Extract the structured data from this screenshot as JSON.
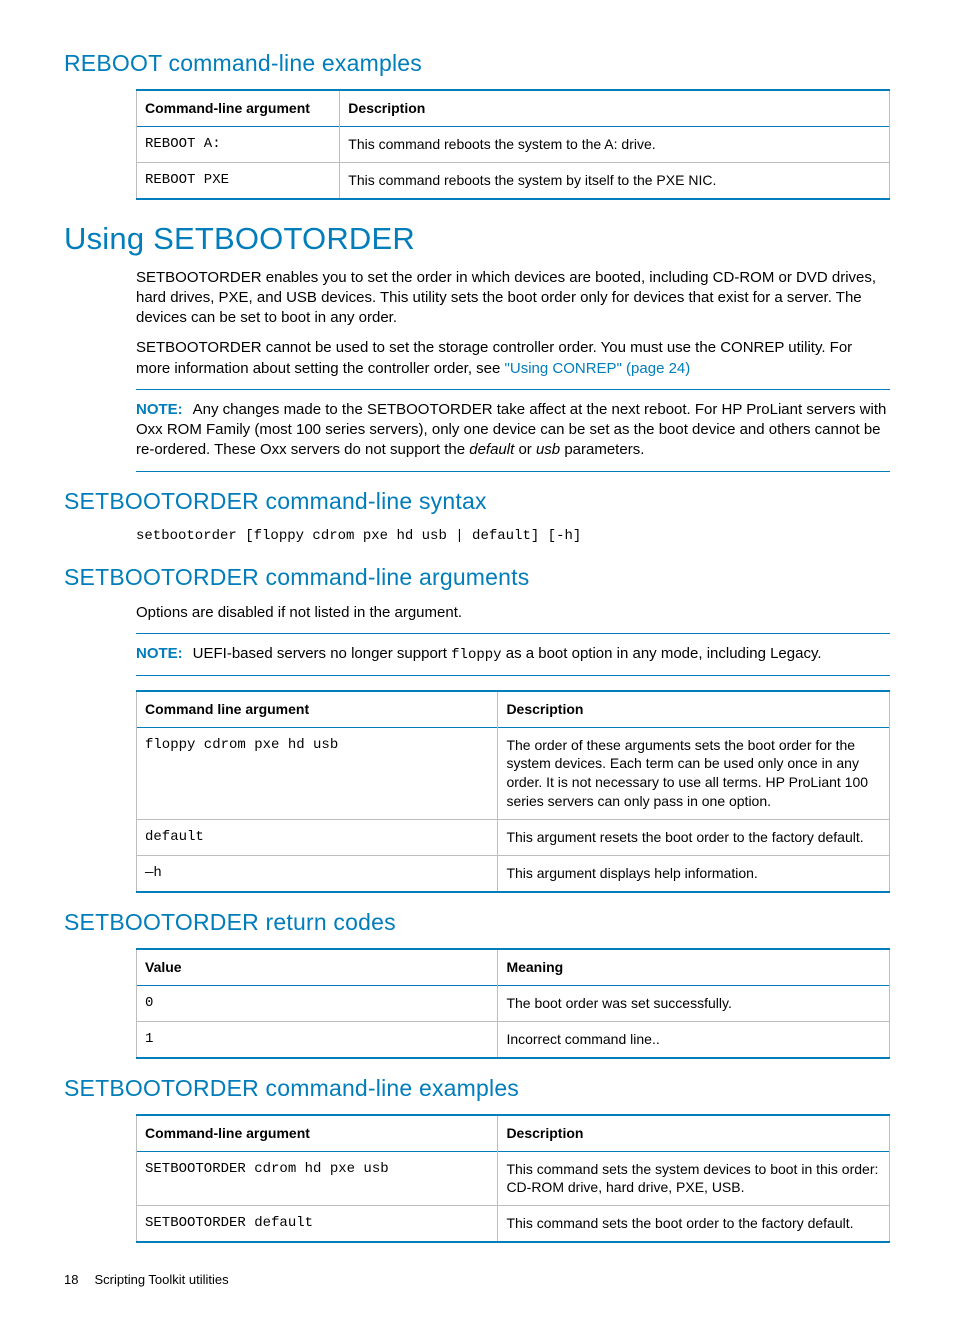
{
  "colors": {
    "accent": "#007dba",
    "rule": "#bdbdbd",
    "text": "#000000",
    "background": "#ffffff"
  },
  "sections": {
    "reboot_examples_heading": "REBOOT command-line examples",
    "setbootorder_heading": "Using SETBOOTORDER",
    "setbootorder_para1": "SETBOOTORDER enables you to set the order in which devices are booted, including CD-ROM or DVD drives, hard drives, PXE, and USB devices. This utility sets the boot order only for devices that exist for a server. The devices can be set to boot in any order.",
    "setbootorder_para2_prefix": "SETBOOTORDER cannot be used to set the storage controller order. You must use the CONREP utility. For more information about setting the controller order, see ",
    "setbootorder_link": "\"Using CONREP\" (page 24)",
    "note1_label": "NOTE:",
    "note1_text_a": "Any changes made to the SETBOOTORDER take affect at the next reboot. For HP ProLiant servers with Oxx ROM Family (most 100 series servers), only one device can be set as the boot device and others cannot be re-ordered. These Oxx servers do not support the ",
    "note1_italic1": "default",
    "note1_text_b": " or ",
    "note1_italic2": "usb",
    "note1_text_c": " parameters.",
    "syntax_heading": "SETBOOTORDER command-line syntax",
    "syntax_code": "setbootorder [floppy cdrom pxe hd usb | default] [-h]",
    "args_heading": "SETBOOTORDER command-line arguments",
    "args_intro": "Options are disabled if not listed in the argument.",
    "note2_label": "NOTE:",
    "note2_text_a": "UEFI-based servers no longer support ",
    "note2_code": "floppy",
    "note2_text_b": " as a boot option in any mode, including Legacy.",
    "return_heading": "SETBOOTORDER return codes",
    "examples_heading": "SETBOOTORDER command-line examples"
  },
  "tables": {
    "reboot_examples": {
      "columns": [
        "Command-line argument",
        "Description"
      ],
      "col_widths": [
        "27%",
        "73%"
      ],
      "rows": [
        [
          "REBOOT A:",
          "This command reboots the system to the A: drive."
        ],
        [
          "REBOOT PXE",
          "This command reboots the system by itself to the PXE NIC."
        ]
      ]
    },
    "args": {
      "columns": [
        "Command line argument",
        "Description"
      ],
      "col_widths": [
        "48%",
        "52%"
      ],
      "rows": [
        [
          "floppy cdrom pxe hd usb",
          "The order of these arguments sets the boot order for the system devices. Each term can be used only once in any order. It is not necessary to use all terms. HP ProLiant 100 series servers can only pass in one option."
        ],
        [
          "default",
          "This argument resets the boot order to the factory default."
        ],
        [
          "—h",
          "This argument displays help information."
        ]
      ]
    },
    "return_codes": {
      "columns": [
        "Value",
        "Meaning"
      ],
      "col_widths": [
        "48%",
        "52%"
      ],
      "rows": [
        [
          "0",
          "The boot order was set successfully."
        ],
        [
          "1",
          "Incorrect command line.."
        ]
      ]
    },
    "examples": {
      "columns": [
        "Command-line argument",
        "Description"
      ],
      "col_widths": [
        "48%",
        "52%"
      ],
      "rows": [
        [
          "SETBOOTORDER cdrom hd pxe usb",
          "This command sets the system devices to boot in this order: CD-ROM drive, hard drive, PXE, USB."
        ],
        [
          "SETBOOTORDER default",
          "This command sets the boot order to the factory default."
        ]
      ]
    }
  },
  "footer": {
    "page": "18",
    "title": "Scripting Toolkit utilities"
  }
}
